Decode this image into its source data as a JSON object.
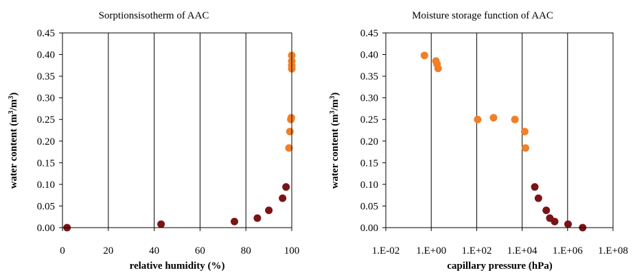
{
  "chart_data": [
    {
      "type": "scatter",
      "title": "Sorptionsisotherm of AAC",
      "xlabel": "relative humidity (%)",
      "ylabel_main": "water content (m",
      "ylabel_sup1": "3",
      "ylabel_mid": "/m",
      "ylabel_sup2": "3",
      "ylabel_end": ")",
      "xlim": [
        0,
        100
      ],
      "ylim": [
        0,
        0.45
      ],
      "x_ticks": [
        0,
        20,
        40,
        60,
        80,
        100
      ],
      "x_tick_labels": [
        "0",
        "20",
        "40",
        "60",
        "80",
        "100"
      ],
      "y_ticks": [
        0,
        0.05,
        0.1,
        0.15,
        0.2,
        0.25,
        0.3,
        0.35,
        0.4,
        0.45
      ],
      "y_tick_labels": [
        "0.00",
        "0.05",
        "0.10",
        "0.15",
        "0.20",
        "0.25",
        "0.30",
        "0.35",
        "0.40",
        "0.45"
      ],
      "grid": "vertical",
      "series": [
        {
          "color": "#7b1416",
          "points": [
            [
              2,
              0.0
            ],
            [
              43,
              0.008
            ],
            [
              75,
              0.014
            ],
            [
              85,
              0.022
            ],
            [
              90,
              0.04
            ],
            [
              96,
              0.068
            ],
            [
              97.5,
              0.094
            ]
          ]
        },
        {
          "color": "#f07f2a",
          "points": [
            [
              98.8,
              0.184
            ],
            [
              99.2,
              0.222
            ],
            [
              99.6,
              0.25
            ],
            [
              99.8,
              0.254
            ],
            [
              100,
              0.367
            ],
            [
              100,
              0.375
            ],
            [
              100,
              0.385
            ],
            [
              100,
              0.398
            ]
          ]
        }
      ]
    },
    {
      "type": "scatter",
      "title": "Moisture storage function of AAC",
      "xlabel": "capillary pressure (hPa)",
      "ylabel_main": "water content (m",
      "ylabel_sup1": "3",
      "ylabel_mid": "/m",
      "ylabel_sup2": "3",
      "ylabel_end": ")",
      "xscale": "log",
      "xlim": [
        0.01,
        100000000
      ],
      "ylim": [
        0,
        0.45
      ],
      "x_ticks": [
        0.01,
        1,
        100,
        10000,
        1000000,
        100000000
      ],
      "x_tick_labels": [
        "1.E-02",
        "1.E+00",
        "1.E+02",
        "1.E+04",
        "1.E+06",
        "1.E+08"
      ],
      "y_ticks": [
        0,
        0.05,
        0.1,
        0.15,
        0.2,
        0.25,
        0.3,
        0.35,
        0.4,
        0.45
      ],
      "y_tick_labels": [
        "0.00",
        "0.05",
        "0.10",
        "0.15",
        "0.20",
        "0.25",
        "0.30",
        "0.35",
        "0.40",
        "0.45"
      ],
      "grid": "vertical",
      "series": [
        {
          "color": "#f07f2a",
          "points": [
            [
              0.5,
              0.398
            ],
            [
              1.6,
              0.385
            ],
            [
              1.8,
              0.378
            ],
            [
              2.0,
              0.368
            ],
            [
              110,
              0.25
            ],
            [
              550,
              0.254
            ],
            [
              4800,
              0.25
            ],
            [
              13000,
              0.222
            ],
            [
              14000,
              0.184
            ]
          ]
        },
        {
          "color": "#7b1416",
          "points": [
            [
              36000,
              0.094
            ],
            [
              52000,
              0.068
            ],
            [
              115000,
              0.04
            ],
            [
              165000,
              0.022
            ],
            [
              270000,
              0.014
            ],
            [
              1050000,
              0.008
            ],
            [
              4600000,
              0.0
            ]
          ]
        }
      ]
    }
  ]
}
